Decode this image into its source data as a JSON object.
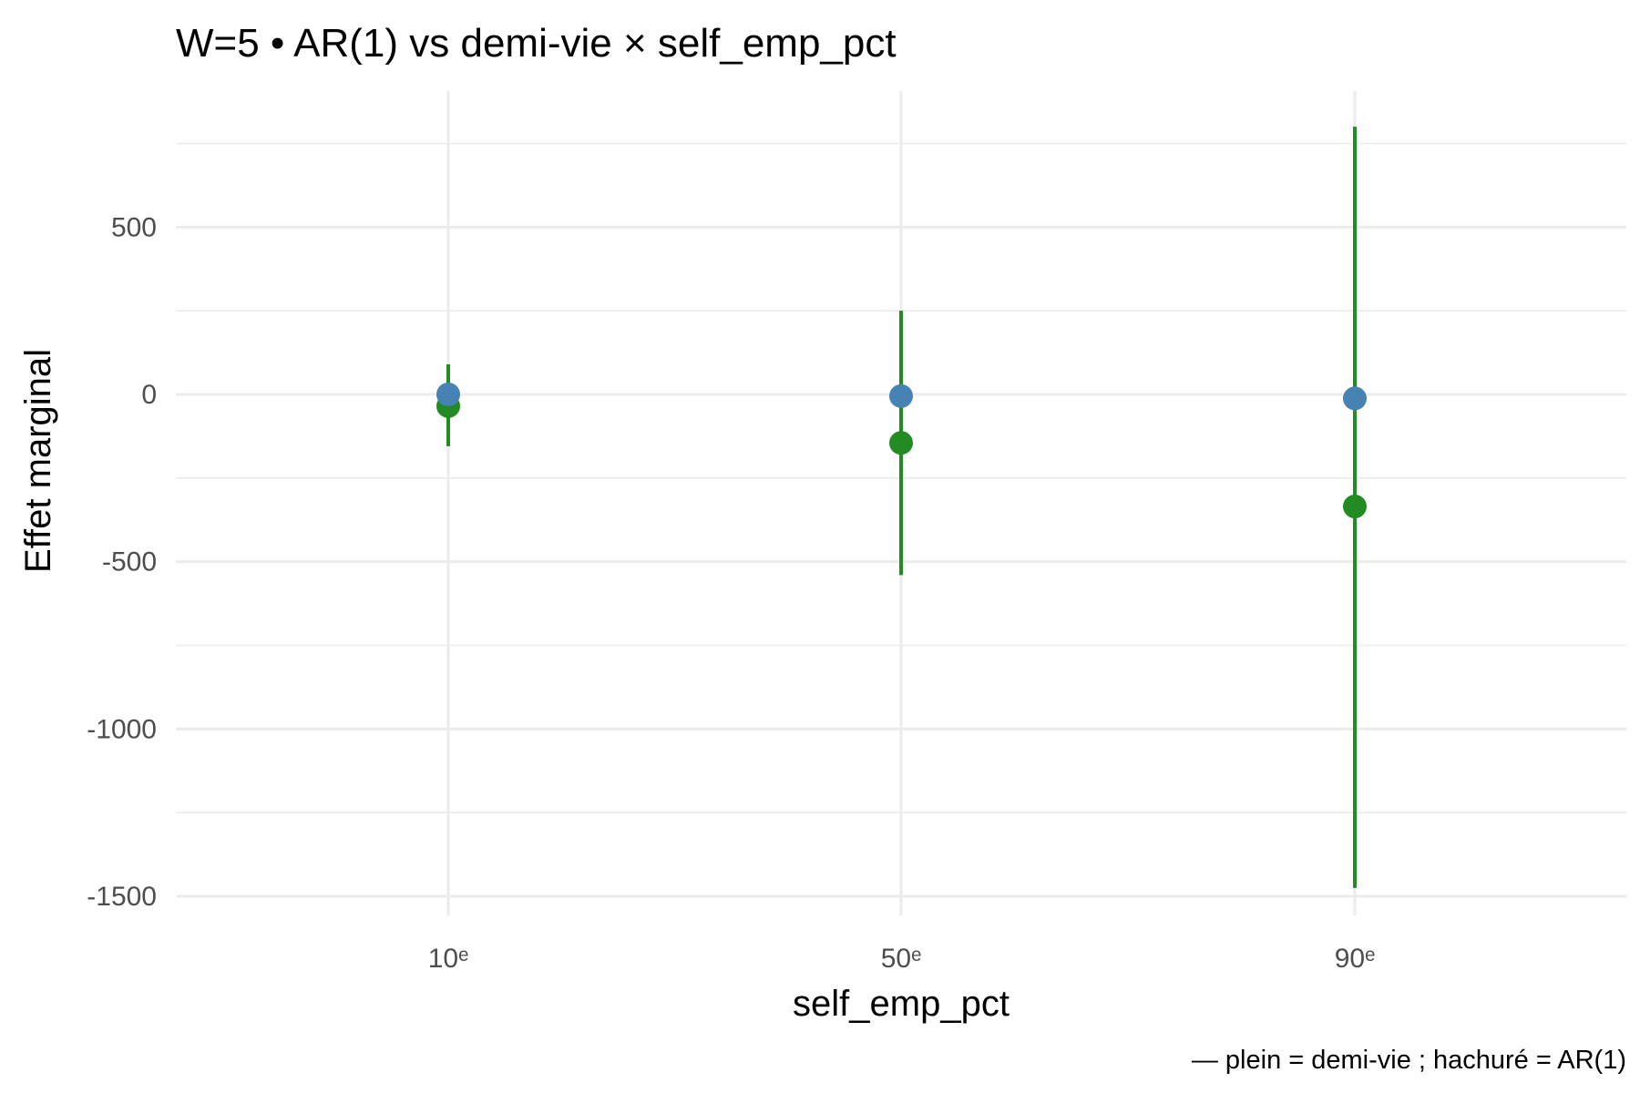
{
  "chart_data": {
    "type": "scatter",
    "title": "W=5 • AR(1) vs demi-vie × self_emp_pct",
    "xlabel": "self_emp_pct",
    "ylabel": "Effet marginal",
    "caption": "— plein = demi-vie ; hachuré = AR(1)",
    "categories": [
      "10ᵉ",
      "50ᵉ",
      "90ᵉ"
    ],
    "ylim": [
      -1575,
      800
    ],
    "yticks": [
      500,
      0,
      -500,
      -1000,
      -1500
    ],
    "ytick_labels": [
      "500",
      "0",
      "-500",
      "-1000",
      "-1500"
    ],
    "grid": true,
    "legend": "none",
    "series": [
      {
        "color": "#228B22",
        "values": [
          -35,
          -145,
          -335
        ],
        "lower": [
          -155,
          -540,
          -1475
        ],
        "upper": [
          90,
          250,
          800
        ]
      },
      {
        "color": "#4682B4",
        "values": [
          0,
          -5,
          -12
        ],
        "lower": [
          0,
          -5,
          -12
        ],
        "upper": [
          0,
          -5,
          -12
        ]
      }
    ]
  }
}
